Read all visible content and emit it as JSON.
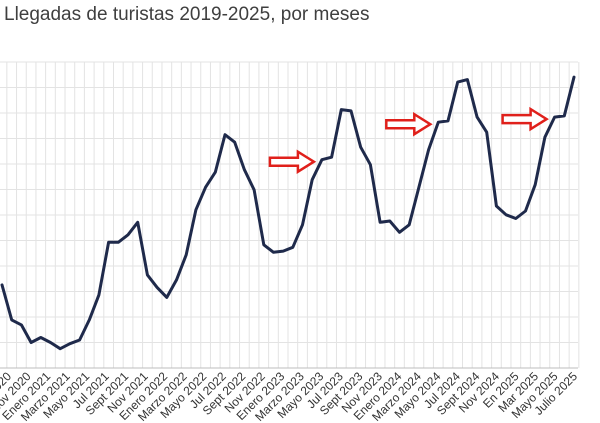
{
  "chart_data": {
    "type": "line",
    "title": "Llegadas de turistas 2019-2025, por meses",
    "xlabel": "",
    "ylabel": "",
    "grid": true,
    "legend": "none",
    "line_color": "#1f2a4b",
    "arrow_color": "#e0201b",
    "grid_color": "#e3e3e3",
    "x_tick_labels": [
      "2020",
      "Nov 2020",
      "Enero 2021",
      "Marzo 2021",
      "Mayo 2021",
      "Jul 2021",
      "Sept 2021",
      "Nov 2021",
      "Enero 2022",
      "Marzo 2022",
      "Mayo 2022",
      "Jul 2022",
      "Sept 2022",
      "Nov 2022",
      "Enero 2023",
      "Marzo 2023",
      "Mayo 2023",
      "Jul 2023",
      "Sept 2023",
      "Nov 2023",
      "Enero 2024",
      "Marzo 2024",
      "Mayo 2024",
      "Jul 2024",
      "Sept 2024",
      "Nov 2024",
      "En 2025",
      "Mar 2025",
      "Mayo 2025",
      "Julio 2025"
    ],
    "y_range": [
      0,
      11
    ],
    "values": [
      3.0,
      1.6,
      1.4,
      0.7,
      0.9,
      0.7,
      0.45,
      0.65,
      0.8,
      1.6,
      2.6,
      4.7,
      4.7,
      5.0,
      5.5,
      3.4,
      2.9,
      2.5,
      3.2,
      4.2,
      6.0,
      6.9,
      7.5,
      9.0,
      8.7,
      7.6,
      6.8,
      4.6,
      4.3,
      4.35,
      4.5,
      5.4,
      7.2,
      8.0,
      8.1,
      10.0,
      9.95,
      8.5,
      7.8,
      5.5,
      5.55,
      5.1,
      5.4,
      6.9,
      8.4,
      9.5,
      9.55,
      11.1,
      11.2,
      9.7,
      9.1,
      6.15,
      5.8,
      5.65,
      5.95,
      7.0,
      8.9,
      9.7,
      9.75,
      11.3
    ],
    "annotations": [
      {
        "type": "arrow",
        "point_index": 33
      },
      {
        "type": "arrow",
        "point_index": 45
      },
      {
        "type": "arrow",
        "point_index": 57
      }
    ]
  }
}
